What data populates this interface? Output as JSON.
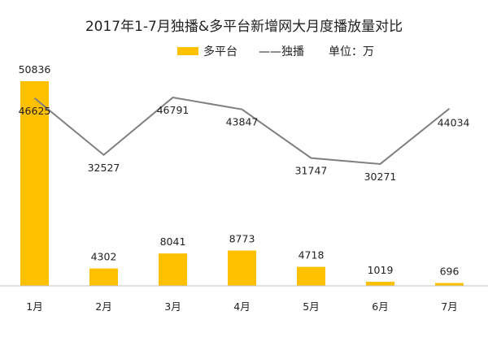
{
  "chart_data": {
    "type": "bar",
    "title": "2017年1-7月独播&多平台新增网大月度播放量对比",
    "unit_label": "单位：万",
    "categories": [
      "1月",
      "2月",
      "3月",
      "4月",
      "5月",
      "6月",
      "7月"
    ],
    "series": [
      {
        "name": "多平台",
        "type": "bar",
        "color": "#FFC000",
        "values": [
          50836,
          4302,
          8041,
          8773,
          4718,
          1019,
          696
        ]
      },
      {
        "name": "独播",
        "type": "line",
        "color": "#7F7F7F",
        "values": [
          46625,
          32527,
          46791,
          43847,
          31747,
          30271,
          44034
        ]
      }
    ],
    "ylim": [
      0,
      55000
    ],
    "grid": false,
    "legend_position": "top-center",
    "legend_line_label": "——独播"
  }
}
